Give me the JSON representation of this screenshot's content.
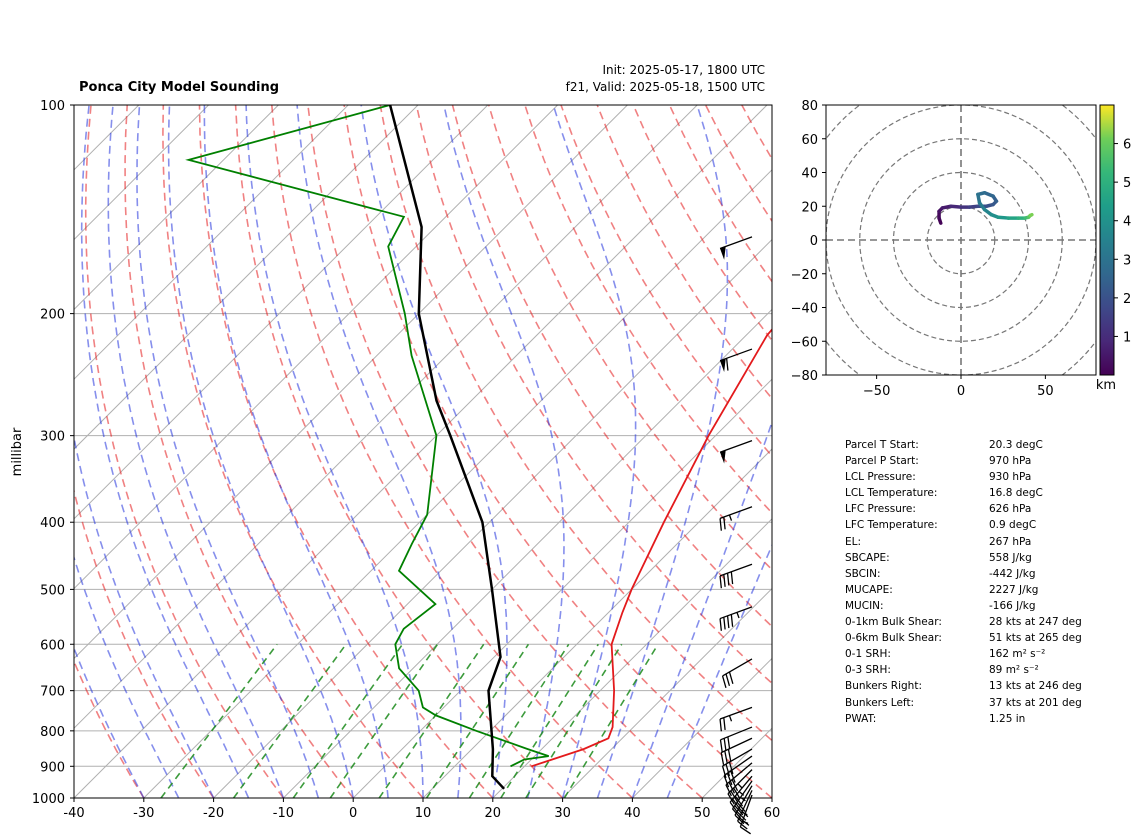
{
  "title_left": "Ponca City Model Sounding",
  "title_right_line1": "Init: 2025-05-17, 1800 UTC",
  "title_right_line2": "f21, Valid: 2025-05-18, 1500 UTC",
  "chart_data": [
    {
      "type": "line",
      "name": "skew-t",
      "ylabel": "millibar",
      "xlim": [
        -40,
        60
      ],
      "ylim": [
        1000,
        100
      ],
      "y_scale": "log",
      "x_ticks": [
        -40,
        -30,
        -20,
        -10,
        0,
        10,
        20,
        30,
        40,
        50,
        60
      ],
      "y_ticks": [
        1000,
        900,
        800,
        700,
        600,
        500,
        400,
        300,
        200,
        100
      ],
      "grid": true,
      "temperature": [
        {
          "p": 900,
          "t": 21
        },
        {
          "p": 880,
          "t": 23
        },
        {
          "p": 850,
          "t": 26
        },
        {
          "p": 820,
          "t": 28
        },
        {
          "p": 790,
          "t": 27
        },
        {
          "p": 700,
          "t": 22
        },
        {
          "p": 600,
          "t": 15
        },
        {
          "p": 540,
          "t": 12
        },
        {
          "p": 500,
          "t": 10
        },
        {
          "p": 400,
          "t": 5
        },
        {
          "p": 300,
          "t": -1
        },
        {
          "p": 215,
          "t": -7
        },
        {
          "p": 185,
          "t": -8
        },
        {
          "p": 150,
          "t": -11
        },
        {
          "p": 120,
          "t": -13
        },
        {
          "p": 100,
          "t": -20
        }
      ],
      "dewpoint": [
        {
          "p": 900,
          "t": 18
        },
        {
          "p": 880,
          "t": 19
        },
        {
          "p": 870,
          "t": 22
        },
        {
          "p": 850,
          "t": 18
        },
        {
          "p": 800,
          "t": 8
        },
        {
          "p": 760,
          "t": 0
        },
        {
          "p": 740,
          "t": -3
        },
        {
          "p": 700,
          "t": -6
        },
        {
          "p": 650,
          "t": -12
        },
        {
          "p": 600,
          "t": -16
        },
        {
          "p": 570,
          "t": -17
        },
        {
          "p": 525,
          "t": -16
        },
        {
          "p": 470,
          "t": -26
        },
        {
          "p": 430,
          "t": -28
        },
        {
          "p": 390,
          "t": -30
        },
        {
          "p": 300,
          "t": -40
        },
        {
          "p": 230,
          "t": -55
        },
        {
          "p": 200,
          "t": -62
        },
        {
          "p": 160,
          "t": -74
        },
        {
          "p": 145,
          "t": -76
        },
        {
          "p": 120,
          "t": -115
        },
        {
          "p": 100,
          "t": -94
        }
      ],
      "parcel": [
        {
          "p": 970,
          "t": 20.3
        },
        {
          "p": 930,
          "t": 16.8
        },
        {
          "p": 850,
          "t": 13
        },
        {
          "p": 700,
          "t": 4
        },
        {
          "p": 626,
          "t": 0.9
        },
        {
          "p": 500,
          "t": -10
        },
        {
          "p": 400,
          "t": -21
        },
        {
          "p": 300,
          "t": -38
        },
        {
          "p": 267,
          "t": -45
        },
        {
          "p": 200,
          "t": -60
        },
        {
          "p": 150,
          "t": -72
        },
        {
          "p": 100,
          "t": -94
        }
      ],
      "wind_barbs": [
        {
          "p": 990,
          "speed": 15,
          "dir": 200
        },
        {
          "p": 975,
          "speed": 25,
          "dir": 205
        },
        {
          "p": 960,
          "speed": 30,
          "dir": 210
        },
        {
          "p": 945,
          "speed": 35,
          "dir": 215
        },
        {
          "p": 930,
          "speed": 35,
          "dir": 220
        },
        {
          "p": 910,
          "speed": 35,
          "dir": 225
        },
        {
          "p": 890,
          "speed": 30,
          "dir": 230
        },
        {
          "p": 870,
          "speed": 30,
          "dir": 235
        },
        {
          "p": 850,
          "speed": 30,
          "dir": 240
        },
        {
          "p": 820,
          "speed": 30,
          "dir": 245
        },
        {
          "p": 790,
          "speed": 30,
          "dir": 248
        },
        {
          "p": 740,
          "speed": 25,
          "dir": 250
        },
        {
          "p": 630,
          "speed": 30,
          "dir": 240
        },
        {
          "p": 530,
          "speed": 45,
          "dir": 250
        },
        {
          "p": 460,
          "speed": 40,
          "dir": 250
        },
        {
          "p": 380,
          "speed": 25,
          "dir": 250
        },
        {
          "p": 305,
          "speed": 50,
          "dir": 250
        },
        {
          "p": 225,
          "speed": 60,
          "dir": 250
        },
        {
          "p": 155,
          "speed": 50,
          "dir": 250
        }
      ]
    },
    {
      "type": "line",
      "name": "hodograph",
      "xlim": [
        -80,
        80
      ],
      "ylim": [
        -80,
        80
      ],
      "x_ticks": [
        -50,
        0,
        50
      ],
      "y_ticks": [
        80,
        60,
        40,
        20,
        0,
        -20,
        -40,
        -60,
        -80
      ],
      "rings": [
        20,
        40,
        60,
        80,
        100
      ],
      "colorbar_label": "km",
      "colorbar_ticks": [
        1,
        2,
        3,
        4,
        5,
        6
      ],
      "colorbar_range": [
        0,
        7
      ],
      "points": [
        {
          "u": -12,
          "v": 10,
          "h": 0.05
        },
        {
          "u": -13,
          "v": 13,
          "h": 0.2
        },
        {
          "u": -13,
          "v": 17,
          "h": 0.4
        },
        {
          "u": -11,
          "v": 19,
          "h": 0.6
        },
        {
          "u": -6,
          "v": 20,
          "h": 0.9
        },
        {
          "u": 0,
          "v": 19.5,
          "h": 1.2
        },
        {
          "u": 5,
          "v": 19.5,
          "h": 1.5
        },
        {
          "u": 10,
          "v": 20,
          "h": 1.8
        },
        {
          "u": 15,
          "v": 20,
          "h": 2.0
        },
        {
          "u": 19,
          "v": 21,
          "h": 2.2
        },
        {
          "u": 21,
          "v": 23,
          "h": 2.4
        },
        {
          "u": 19,
          "v": 26,
          "h": 2.6
        },
        {
          "u": 14,
          "v": 28,
          "h": 2.8
        },
        {
          "u": 10,
          "v": 27,
          "h": 3.0
        },
        {
          "u": 11,
          "v": 22,
          "h": 3.3
        },
        {
          "u": 14,
          "v": 18,
          "h": 3.6
        },
        {
          "u": 18,
          "v": 15,
          "h": 3.9
        },
        {
          "u": 22,
          "v": 13.5,
          "h": 4.2
        },
        {
          "u": 28,
          "v": 13,
          "h": 4.6
        },
        {
          "u": 34,
          "v": 13,
          "h": 5.0
        },
        {
          "u": 38,
          "v": 13,
          "h": 5.4
        },
        {
          "u": 40,
          "v": 13.5,
          "h": 5.8
        },
        {
          "u": 41,
          "v": 14.5,
          "h": 6.2
        },
        {
          "u": 42,
          "v": 15,
          "h": 6.6
        }
      ]
    }
  ],
  "stats": [
    {
      "label": "Parcel T Start:",
      "value": "20.3 degC"
    },
    {
      "label": "Parcel P Start:",
      "value": "970 hPa"
    },
    {
      "label": "LCL Pressure:",
      "value": "930 hPa"
    },
    {
      "label": "LCL Temperature:",
      "value": "16.8 degC"
    },
    {
      "label": "LFC Pressure:",
      "value": "626 hPa"
    },
    {
      "label": "LFC Temperature:",
      "value": "0.9 degC"
    },
    {
      "label": "EL:",
      "value": "267 hPa"
    },
    {
      "label": "SBCAPE:",
      "value": "558 J/kg"
    },
    {
      "label": "SBCIN:",
      "value": "-442 J/kg"
    },
    {
      "label": "MUCAPE:",
      "value": "2227 J/kg"
    },
    {
      "label": "MUCIN:",
      "value": "-166 J/kg"
    },
    {
      "label": "0-1km Bulk Shear:",
      "value": "28 kts at 247 deg"
    },
    {
      "label": "0-6km Bulk Shear:",
      "value": "51 kts at 265 deg"
    },
    {
      "label": "0-1 SRH:",
      "value": "162 m² s⁻²"
    },
    {
      "label": "0-3 SRH:",
      "value": "89 m² s⁻²"
    },
    {
      "label": "Bunkers Right:",
      "value": "13 kts at 246 deg"
    },
    {
      "label": "Bunkers Left:",
      "value": "37 kts at 201 deg"
    },
    {
      "label": "PWAT:",
      "value": "1.25 in"
    }
  ]
}
